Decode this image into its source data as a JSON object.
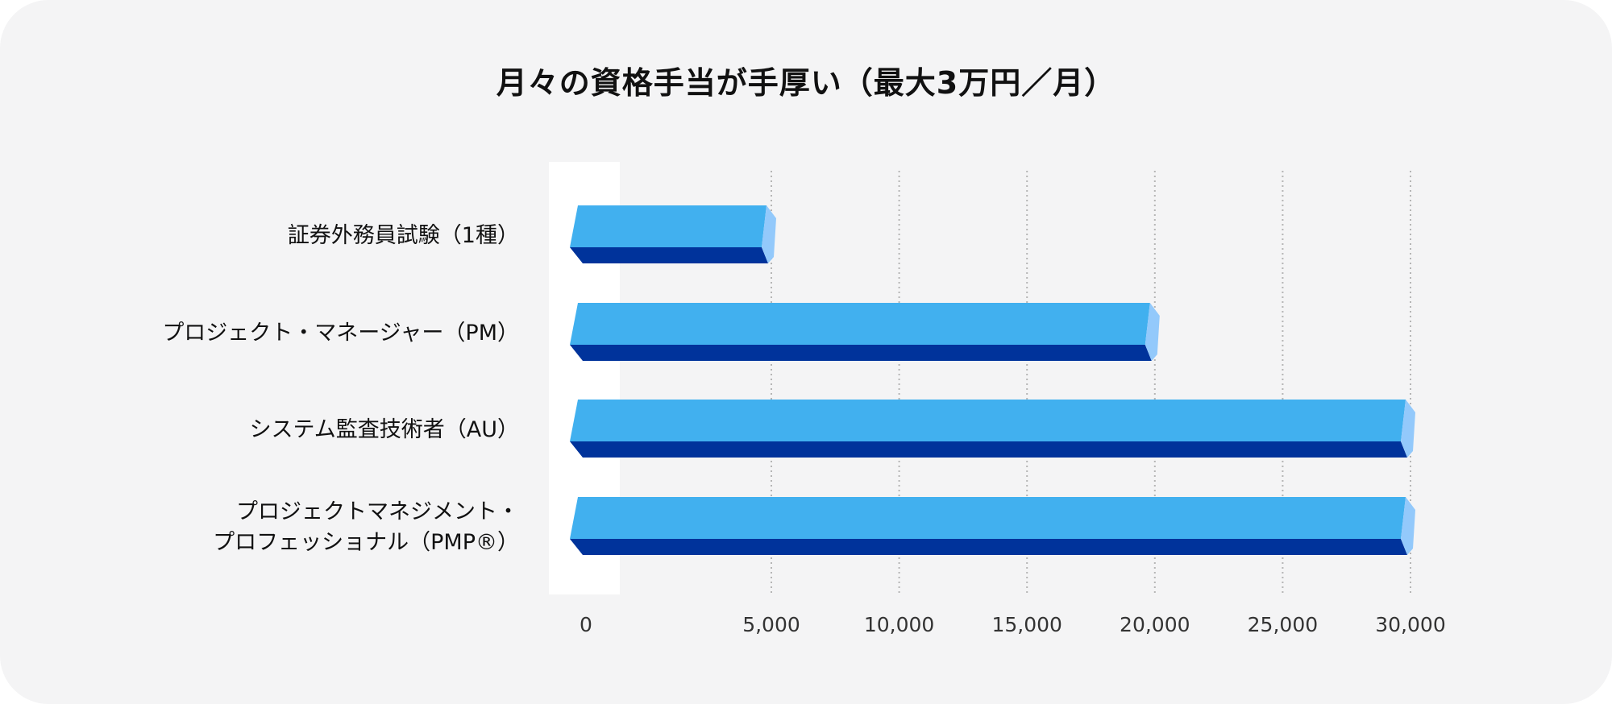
{
  "title": "月々の資格手当が手厚い（最大3万円／月）",
  "chart_data": {
    "type": "bar",
    "orientation": "horizontal",
    "title": "月々の資格手当が手厚い（最大3万円／月）",
    "categories": [
      [
        "証券外務員試験（1種）"
      ],
      [
        "プロジェクト・マネージャー（PM）"
      ],
      [
        "システム監査技術者（AU）"
      ],
      [
        "プロジェクトマネジメント・",
        "プロフェッショナル（PMP®）"
      ]
    ],
    "values": [
      5000,
      20000,
      30000,
      30000
    ],
    "xlim": [
      0,
      30000
    ],
    "x_ticks": [
      0,
      5000,
      10000,
      15000,
      20000,
      25000,
      30000
    ],
    "x_tick_labels": [
      "0",
      "5,000",
      "10,000",
      "15,000",
      "20,000",
      "25,000",
      "30,000"
    ],
    "grid": "vertical dotted",
    "colors": {
      "bar_front": "#41b0ef",
      "bar_bottom": "#00339b",
      "bar_side": "#93c9fb",
      "grid": "#b5b5b5",
      "zero_band": "#ffffff"
    }
  }
}
